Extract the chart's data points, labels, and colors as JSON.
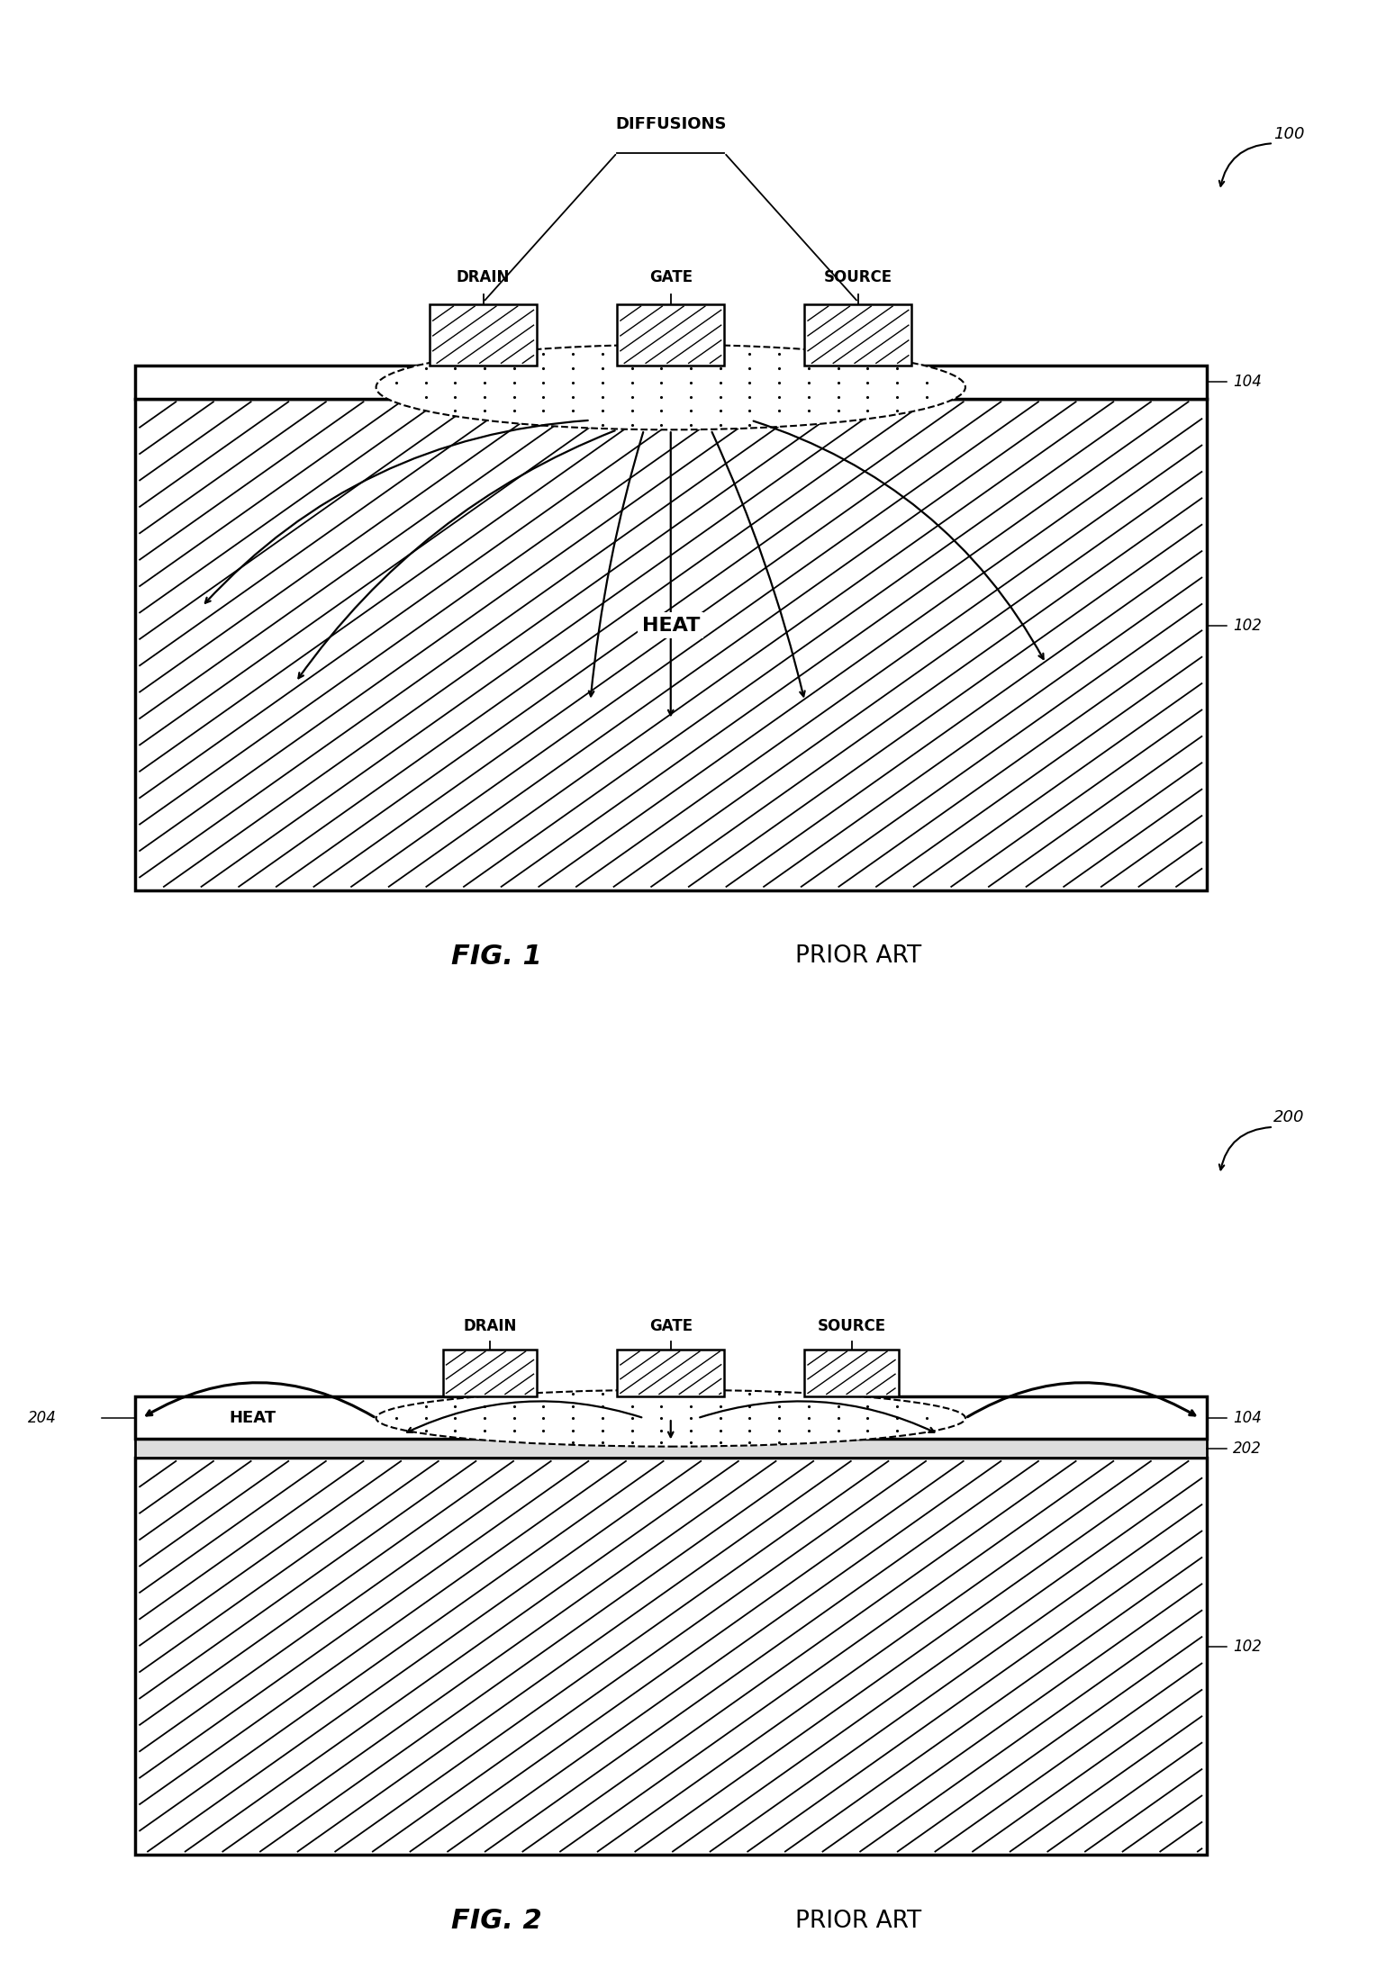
{
  "fig_width": 15.49,
  "fig_height": 21.87,
  "bg_color": "#ffffff",
  "fig1": {
    "label": "FIG. 1",
    "prior_art": "PRIOR ART",
    "ref_100": "100",
    "ref_102": "102",
    "ref_104": "104",
    "label_drain": "DRAIN",
    "label_gate": "GATE",
    "label_source": "SOURCE",
    "label_diffusions": "DIFFUSIONS",
    "label_heat": "HEAT"
  },
  "fig2": {
    "label": "FIG. 2",
    "prior_art": "PRIOR ART",
    "ref_200": "200",
    "ref_202": "202",
    "ref_204": "204",
    "ref_102": "102",
    "ref_104": "104",
    "label_drain": "DRAIN",
    "label_gate": "GATE",
    "label_source": "SOURCE",
    "label_heat": "HEAT"
  }
}
